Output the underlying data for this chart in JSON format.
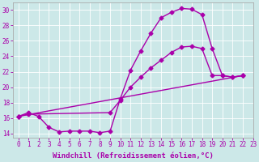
{
  "xlabel": "Windchill (Refroidissement éolien,°C)",
  "bg_color": "#cce8e8",
  "line_color": "#aa00aa",
  "xlim": [
    -0.5,
    23
  ],
  "ylim": [
    13.5,
    31
  ],
  "yticks": [
    14,
    16,
    18,
    20,
    22,
    24,
    26,
    28,
    30
  ],
  "xticks": [
    0,
    1,
    2,
    3,
    4,
    5,
    6,
    7,
    8,
    9,
    10,
    11,
    12,
    13,
    14,
    15,
    16,
    17,
    18,
    19,
    20,
    21,
    22,
    23
  ],
  "line1_x": [
    0,
    1,
    2,
    3,
    4,
    5,
    6,
    7,
    8,
    9,
    10,
    11,
    12,
    13,
    14,
    15,
    16,
    17,
    18,
    19,
    20,
    21,
    22
  ],
  "line1_y": [
    16.2,
    16.7,
    16.2,
    14.8,
    14.2,
    14.3,
    14.3,
    14.3,
    14.1,
    14.3,
    18.5,
    22.2,
    24.7,
    27.0,
    29.0,
    29.7,
    30.2,
    30.1,
    29.4,
    25.0,
    21.5,
    21.3,
    21.5
  ],
  "line2_x": [
    0,
    1,
    9,
    10,
    11,
    12,
    13,
    14,
    15,
    16,
    17,
    18,
    19,
    20,
    21,
    22
  ],
  "line2_y": [
    16.2,
    16.5,
    16.7,
    18.3,
    20.0,
    21.3,
    22.5,
    23.5,
    24.5,
    25.2,
    25.3,
    25.0,
    21.5,
    21.5,
    21.3,
    21.5
  ],
  "line3_x": [
    0,
    22
  ],
  "line3_y": [
    16.2,
    21.5
  ],
  "marker": "D",
  "markersize": 2.5,
  "linewidth": 1.0,
  "tick_fontsize": 5.5,
  "xlabel_fontsize": 6.5
}
